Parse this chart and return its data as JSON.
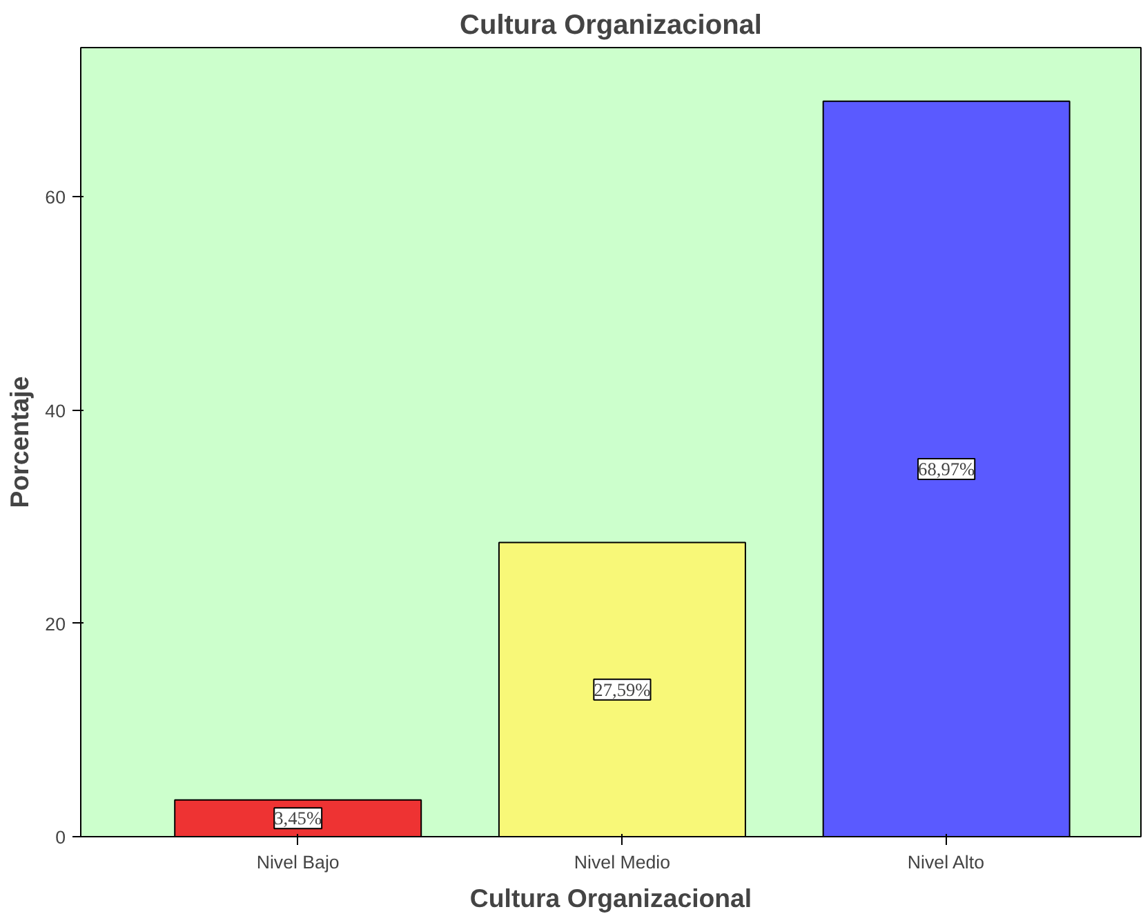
{
  "chart_data": {
    "type": "bar",
    "title": "Cultura Organizacional",
    "xlabel": "Cultura Organizacional",
    "ylabel": "Porcentaje",
    "categories": [
      "Nivel Bajo",
      "Nivel Medio",
      "Nivel Alto"
    ],
    "values": [
      3.45,
      27.59,
      68.97
    ],
    "colors": [
      "#ee3333",
      "#f8f878",
      "#5a5aff"
    ],
    "value_labels": [
      "3,45%",
      "27,59%",
      "68,97%"
    ],
    "ylim": [
      0,
      74
    ],
    "yticks": [
      0,
      20,
      40,
      60
    ],
    "grid": false
  }
}
